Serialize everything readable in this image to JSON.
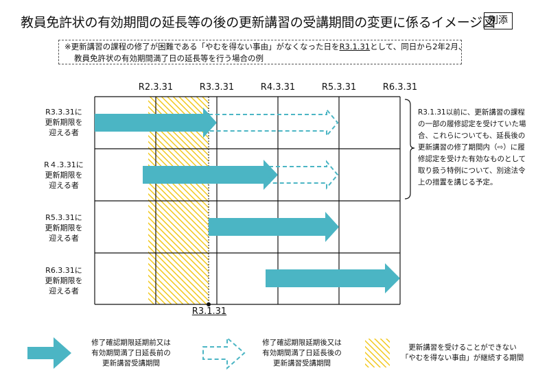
{
  "title": "教員免許状の有効期間の延長等の後の更新講習の受講期間の変更に係るイメージ図",
  "badge": "別添",
  "note": {
    "line1_before": "※更新講習の課程の修了が困難である「やむを得ない事由」がなくなった日を",
    "line1_underlined": "R3.1.31",
    "line1_after": "として、同日から2年2月、",
    "line2": "教員免許状の有効期間満了日の延長等を行う場合の例"
  },
  "columns": [
    "R2.3.31",
    "R3.3.31",
    "R4.3.31",
    "R5.3.31",
    "R6.3.31"
  ],
  "reference_line_label": "R3.1.31",
  "rows": [
    {
      "label": [
        "R3.3.31に",
        "更新期限を",
        "迎える者"
      ]
    },
    {
      "label": [
        "R４.3.31に",
        "更新期限を",
        "迎える者"
      ]
    },
    {
      "label": [
        "R5.3.31に",
        "更新期限を",
        "迎える者"
      ]
    },
    {
      "label": [
        "R6.3.31に",
        "更新期限を",
        "迎える者"
      ]
    }
  ],
  "side_note": "R3.1.31以前に、更新講習の課程の一部の履修認定を受けていた場合、これらについても、延長後の更新講習の修了期間内（⇨）に履修認定を受けた有効なものとして取り扱う特例について、別途法令上の措置を講じる予定。",
  "legend": [
    {
      "lines": [
        "修了確認期限延期前又は",
        "有効期間満了日延長前の",
        "更新講習受講期間"
      ]
    },
    {
      "lines": [
        "修了確認期限延期後又は",
        "有効期間満了日延長後の",
        "更新講習受講期間"
      ]
    },
    {
      "lines": [
        "更新講習を受けることができない",
        "「やむを得ない事由」が継続する期間"
      ]
    }
  ],
  "colors": {
    "arrow": "#4bb5c4",
    "hatch": "#f2c81e",
    "grid": "#111111"
  }
}
